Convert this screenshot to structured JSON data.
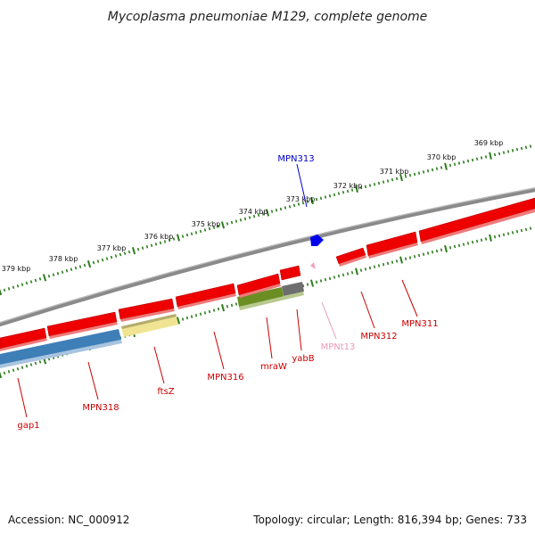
{
  "title": "Mycoplasma pneumoniae M129, complete genome",
  "footer": {
    "accession": "Accession: NC_000912",
    "summary": "Topology: circular; Length: 816,394 bp; Genes: 733"
  },
  "colors": {
    "backbone": "#7a7a7a",
    "ticks": "#2e7d1e",
    "protein_gene": "#ee0000",
    "highlight_blue": "#3f7fb8",
    "highlight_yellow": "#f0e493",
    "highlight_olive": "#6b8e23",
    "pseudo_gray": "#6e6e6e",
    "trna_pink": "#f2a0c0",
    "blue_marker": "#0000ee"
  },
  "ticks": [
    {
      "label": "369 kbp"
    },
    {
      "label": "370 kbp"
    },
    {
      "label": "371 kbp"
    },
    {
      "label": "372 kbp"
    },
    {
      "label": "373 kbp"
    },
    {
      "label": "374 kbp"
    },
    {
      "label": "375 kbp"
    },
    {
      "label": "376 kbp"
    },
    {
      "label": "377 kbp"
    },
    {
      "label": "378 kbp"
    },
    {
      "label": "379 kbp"
    }
  ],
  "genes": [
    {
      "name": "MPN313",
      "color": "#0000cc"
    },
    {
      "name": "MPN311",
      "color": "#cc0000"
    },
    {
      "name": "MPN312",
      "color": "#cc0000"
    },
    {
      "name": "MPNt13",
      "color": "#e99ab8"
    },
    {
      "name": "yabB",
      "color": "#cc0000"
    },
    {
      "name": "mraW",
      "color": "#cc0000"
    },
    {
      "name": "MPN316",
      "color": "#cc0000"
    },
    {
      "name": "ftsZ",
      "color": "#cc0000"
    },
    {
      "name": "MPN318",
      "color": "#cc0000"
    },
    {
      "name": "gap1",
      "color": "#cc0000"
    }
  ]
}
